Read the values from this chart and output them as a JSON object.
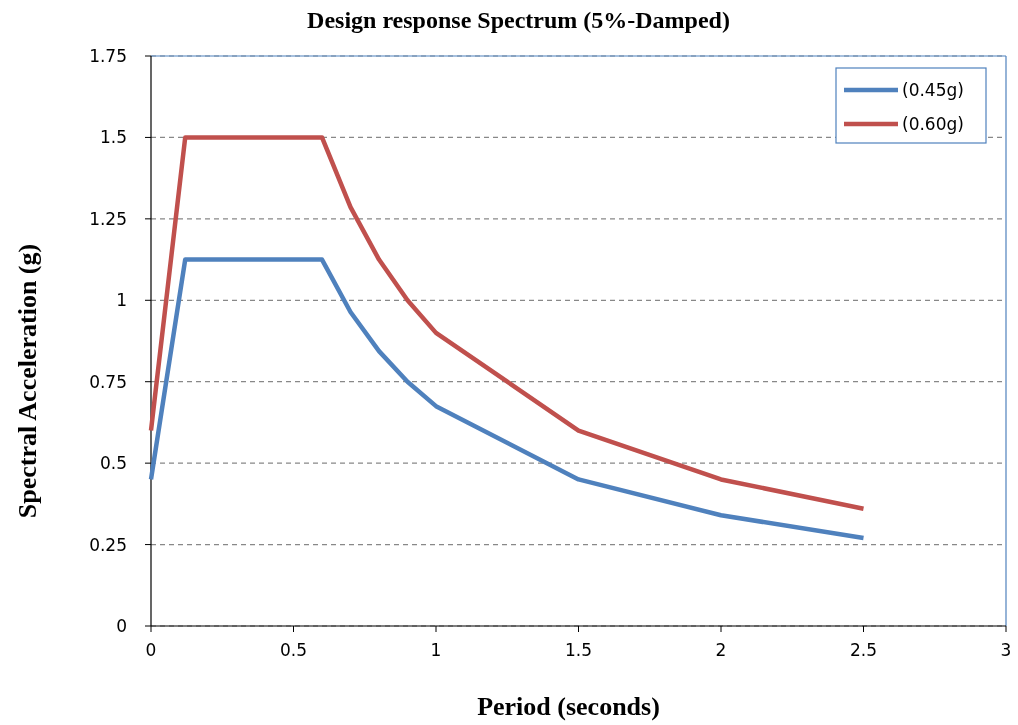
{
  "chart_data": {
    "type": "line",
    "title": "Design response Spectrum (5%-Damped)",
    "xlabel": "Period (seconds)",
    "ylabel": "Spectral Acceleration (g)",
    "xlim": [
      0,
      3
    ],
    "xticks": [
      0,
      0.5,
      1,
      1.5,
      2,
      2.5,
      3
    ],
    "ylim": [
      0,
      1.75
    ],
    "yticks": [
      0,
      0.25,
      0.5,
      0.75,
      1,
      1.25,
      1.5,
      1.75
    ],
    "grid": "y",
    "legend": "top right",
    "marker": "none",
    "line_style": "solid",
    "series": [
      {
        "name": "(0.45g)",
        "color": "#4f81bd",
        "x": [
          0,
          0.12,
          0.6,
          0.7,
          0.8,
          0.9,
          1.0,
          1.5,
          2.0,
          2.5
        ],
        "values": [
          0.45,
          1.125,
          1.125,
          0.964,
          0.844,
          0.75,
          0.675,
          0.45,
          0.34,
          0.27
        ]
      },
      {
        "name": "(0.60g)",
        "color": "#c0504d",
        "x": [
          0,
          0.12,
          0.6,
          0.7,
          0.8,
          0.9,
          1.0,
          1.5,
          2.0,
          2.5
        ],
        "values": [
          0.6,
          1.5,
          1.5,
          1.286,
          1.125,
          1.0,
          0.9,
          0.6,
          0.45,
          0.36
        ]
      }
    ]
  }
}
